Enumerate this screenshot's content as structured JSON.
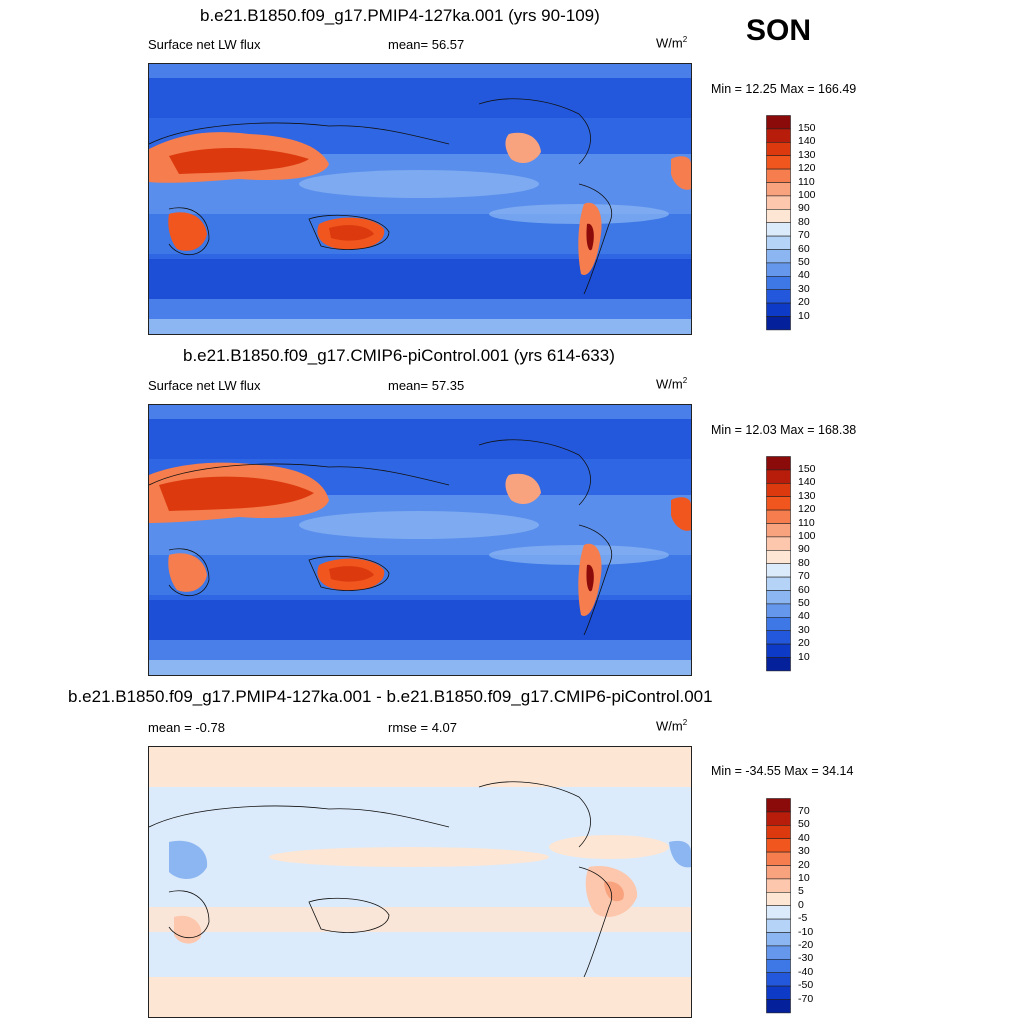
{
  "season": "SON",
  "panels": [
    {
      "title": "b.e21.B1850.f09_g17.PMIP4-127ka.001 (yrs 90-109)",
      "left": "Surface net LW flux",
      "mid": "mean=  56.57",
      "units": "W/m",
      "units_sup": "2",
      "minmax": "Min =  12.25 Max = 166.49"
    },
    {
      "title": "b.e21.B1850.f09_g17.CMIP6-piControl.001 (yrs 614-633)",
      "left": "Surface net LW flux",
      "mid": "mean=  57.35",
      "units": "W/m",
      "units_sup": "2",
      "minmax": "Min =  12.03 Max = 168.38"
    },
    {
      "title": "b.e21.B1850.f09_g17.PMIP4-127ka.001 - b.e21.B1850.f09_g17.CMIP6-piControl.001",
      "left": "mean =  -0.78",
      "mid": "rmse =   4.07",
      "units": "W/m",
      "units_sup": "2",
      "minmax": "Min = -34.55 Max =  34.14"
    }
  ],
  "chart_data": [
    {
      "type": "heatmap",
      "title": "b.e21.B1850.f09_g17.PMIP4-127ka.001 (yrs 90-109)",
      "variable": "Surface net LW flux",
      "units": "W/m2",
      "mean": 56.57,
      "min": 12.25,
      "max": 166.49,
      "colorbar_levels": [
        "150",
        "140",
        "130",
        "120",
        "110",
        "100",
        "90",
        "80",
        "70",
        "60",
        "50",
        "40",
        "30",
        "20",
        "10"
      ],
      "colorbar_colors": [
        "#8b0a0a",
        "#b81c0a",
        "#dc3a0e",
        "#f0561e",
        "#f57d4e",
        "#f9a27e",
        "#fcc7ac",
        "#fde6d4",
        "#dcebfb",
        "#b5d2f7",
        "#8cb6f2",
        "#6598ec",
        "#3d78e6",
        "#2358dd",
        "#0d3bc7",
        "#04209a"
      ]
    },
    {
      "type": "heatmap",
      "title": "b.e21.B1850.f09_g17.CMIP6-piControl.001 (yrs 614-633)",
      "variable": "Surface net LW flux",
      "units": "W/m2",
      "mean": 57.35,
      "min": 12.03,
      "max": 168.38,
      "colorbar_levels": [
        "150",
        "140",
        "130",
        "120",
        "110",
        "100",
        "90",
        "80",
        "70",
        "60",
        "50",
        "40",
        "30",
        "20",
        "10"
      ],
      "colorbar_colors": [
        "#8b0a0a",
        "#b81c0a",
        "#dc3a0e",
        "#f0561e",
        "#f57d4e",
        "#f9a27e",
        "#fcc7ac",
        "#fde6d4",
        "#dcebfb",
        "#b5d2f7",
        "#8cb6f2",
        "#6598ec",
        "#3d78e6",
        "#2358dd",
        "#0d3bc7",
        "#04209a"
      ]
    },
    {
      "type": "heatmap",
      "title": "b.e21.B1850.f09_g17.PMIP4-127ka.001 - b.e21.B1850.f09_g17.CMIP6-piControl.001",
      "units": "W/m2",
      "mean": -0.78,
      "rmse": 4.07,
      "min": -34.55,
      "max": 34.14,
      "colorbar_levels": [
        "70",
        "50",
        "40",
        "30",
        "20",
        "10",
        "5",
        "0",
        "-5",
        "-10",
        "-20",
        "-30",
        "-40",
        "-50",
        "-70"
      ],
      "colorbar_colors": [
        "#8b0a0a",
        "#b81c0a",
        "#dc3a0e",
        "#f0561e",
        "#f57d4e",
        "#f9a27e",
        "#fcc7ac",
        "#fde6d4",
        "#dcebfb",
        "#b5d2f7",
        "#8cb6f2",
        "#6598ec",
        "#3d78e6",
        "#2358dd",
        "#0d3bc7",
        "#04209a"
      ]
    }
  ]
}
